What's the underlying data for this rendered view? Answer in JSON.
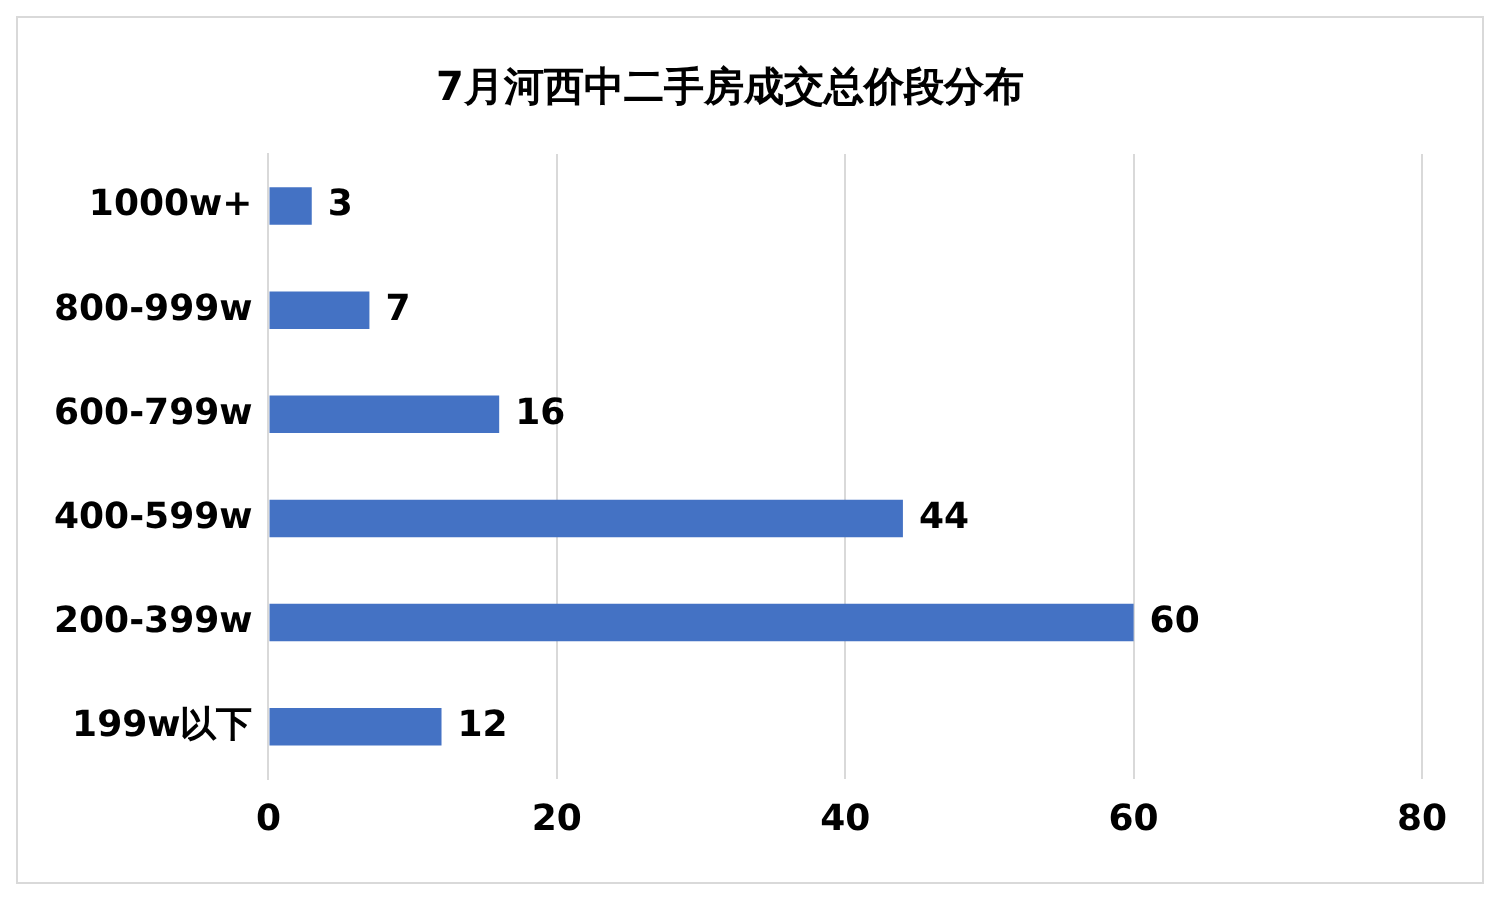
{
  "chart_data": {
    "type": "bar",
    "orientation": "horizontal",
    "title": "7月河西中二手房成交总价段分布",
    "categories": [
      "1000w+",
      "800-999w",
      "600-799w",
      "400-599w",
      "200-399w",
      "199w以下"
    ],
    "values": [
      3,
      7,
      16,
      44,
      60,
      12
    ],
    "color": "#4472c4",
    "xlim": [
      0,
      80
    ],
    "xticks": [
      0,
      20,
      40,
      60,
      80
    ],
    "grid": "x",
    "data_labels": true
  }
}
